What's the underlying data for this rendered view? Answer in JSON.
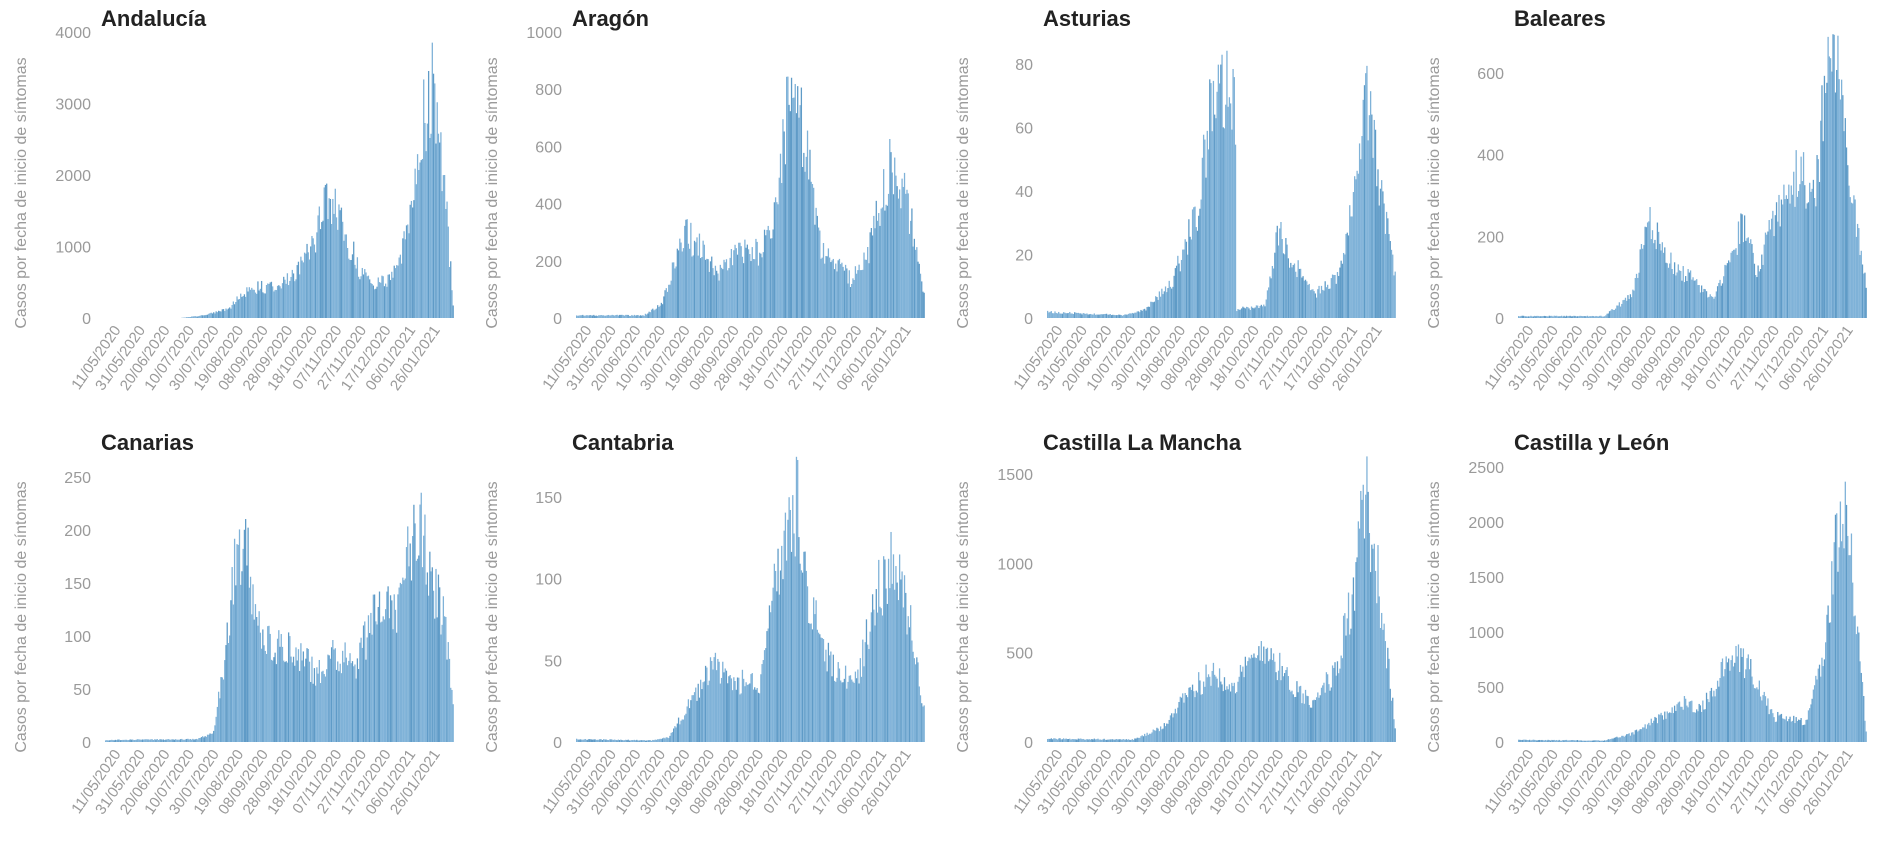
{
  "page": {
    "ylabel": "Casos por fecha de inicio de síntomas",
    "date_ticks": [
      "11/05/2020",
      "31/05/2020",
      "20/06/2020",
      "10/07/2020",
      "30/07/2020",
      "19/08/2020",
      "08/09/2020",
      "28/09/2020",
      "18/10/2020",
      "07/11/2020",
      "27/11/2020",
      "17/12/2020",
      "06/01/2021",
      "26/01/2021"
    ],
    "colors": {
      "bar": "#7fb2d8",
      "bar_dark": "#5f9bc7",
      "text": "#222222",
      "axis_text": "#9a9a9a"
    }
  },
  "chart_data": [
    {
      "type": "bar",
      "title": "Andalucía",
      "ylabel": "Casos por fecha de inicio de síntomas",
      "ylim": [
        0,
        4000
      ],
      "yticks": [
        0,
        1000,
        2000,
        3000,
        4000
      ],
      "x_range": [
        "2020-05-01",
        "2021-02-10"
      ],
      "peaks": [
        {
          "date": "2020-07-01",
          "value": 0
        },
        {
          "date": "2020-07-20",
          "value": 40
        },
        {
          "date": "2020-08-10",
          "value": 150
        },
        {
          "date": "2020-08-25",
          "value": 450
        },
        {
          "date": "2020-09-10",
          "value": 480
        },
        {
          "date": "2020-09-25",
          "value": 550
        },
        {
          "date": "2020-10-15",
          "value": 1000
        },
        {
          "date": "2020-10-28",
          "value": 1750
        },
        {
          "date": "2020-11-05",
          "value": 1600
        },
        {
          "date": "2020-11-25",
          "value": 700
        },
        {
          "date": "2020-12-05",
          "value": 500
        },
        {
          "date": "2020-12-20",
          "value": 600
        },
        {
          "date": "2021-01-05",
          "value": 1500
        },
        {
          "date": "2021-01-15",
          "value": 3000
        },
        {
          "date": "2021-01-22",
          "value": 3600
        },
        {
          "date": "2021-02-01",
          "value": 2000
        },
        {
          "date": "2021-02-08",
          "value": 200
        }
      ]
    },
    {
      "type": "bar",
      "title": "Aragón",
      "ylabel": "Casos por fecha de inicio de síntomas",
      "ylim": [
        0,
        1000
      ],
      "yticks": [
        0,
        200,
        400,
        600,
        800,
        1000
      ],
      "x_range": [
        "2020-05-01",
        "2021-02-10"
      ],
      "peaks": [
        {
          "date": "2020-05-01",
          "value": 10
        },
        {
          "date": "2020-06-25",
          "value": 10
        },
        {
          "date": "2020-07-10",
          "value": 60
        },
        {
          "date": "2020-07-28",
          "value": 330
        },
        {
          "date": "2020-08-10",
          "value": 260
        },
        {
          "date": "2020-08-25",
          "value": 170
        },
        {
          "date": "2020-09-10",
          "value": 250
        },
        {
          "date": "2020-09-28",
          "value": 250
        },
        {
          "date": "2020-10-10",
          "value": 400
        },
        {
          "date": "2020-10-22",
          "value": 880
        },
        {
          "date": "2020-11-02",
          "value": 700
        },
        {
          "date": "2020-11-15",
          "value": 280
        },
        {
          "date": "2020-12-10",
          "value": 150
        },
        {
          "date": "2020-12-25",
          "value": 250
        },
        {
          "date": "2021-01-12",
          "value": 600
        },
        {
          "date": "2021-01-25",
          "value": 450
        },
        {
          "date": "2021-02-08",
          "value": 100
        }
      ]
    },
    {
      "type": "bar",
      "title": "Asturias",
      "ylabel": "Casos por fecha de inicio de síntomas",
      "ylim": [
        0,
        90
      ],
      "yticks": [
        0,
        20,
        40,
        60,
        80
      ],
      "x_range": [
        "2020-05-01",
        "2021-02-10"
      ],
      "peaks": [
        {
          "date": "2020-05-01",
          "value": 2
        },
        {
          "date": "2020-07-01",
          "value": 1
        },
        {
          "date": "2020-07-20",
          "value": 3
        },
        {
          "date": "2020-08-10",
          "value": 12
        },
        {
          "date": "2020-08-30",
          "value": 35
        },
        {
          "date": "2020-09-12",
          "value": 75
        },
        {
          "date": "2020-09-25",
          "value": 78
        },
        {
          "date": "2020-10-01",
          "value": 70
        },
        {
          "date": "2020-10-02",
          "value": 3
        },
        {
          "date": "2020-10-25",
          "value": 4
        },
        {
          "date": "2020-11-05",
          "value": 30
        },
        {
          "date": "2020-11-15",
          "value": 20
        },
        {
          "date": "2020-12-05",
          "value": 8
        },
        {
          "date": "2020-12-25",
          "value": 15
        },
        {
          "date": "2021-01-10",
          "value": 50
        },
        {
          "date": "2021-01-15",
          "value": 80
        },
        {
          "date": "2021-01-25",
          "value": 50
        },
        {
          "date": "2021-02-08",
          "value": 15
        }
      ]
    },
    {
      "type": "bar",
      "title": "Baleares",
      "ylabel": "Casos por fecha de inicio de síntomas",
      "ylim": [
        0,
        700
      ],
      "yticks": [
        0,
        200,
        400,
        600
      ],
      "x_range": [
        "2020-05-01",
        "2021-02-10"
      ],
      "peaks": [
        {
          "date": "2020-05-01",
          "value": 5
        },
        {
          "date": "2020-07-10",
          "value": 5
        },
        {
          "date": "2020-08-01",
          "value": 60
        },
        {
          "date": "2020-08-15",
          "value": 260
        },
        {
          "date": "2020-09-01",
          "value": 150
        },
        {
          "date": "2020-09-20",
          "value": 100
        },
        {
          "date": "2020-10-05",
          "value": 50
        },
        {
          "date": "2020-10-20",
          "value": 150
        },
        {
          "date": "2020-11-01",
          "value": 260
        },
        {
          "date": "2020-11-10",
          "value": 120
        },
        {
          "date": "2020-11-25",
          "value": 250
        },
        {
          "date": "2020-12-15",
          "value": 400
        },
        {
          "date": "2020-12-28",
          "value": 300
        },
        {
          "date": "2021-01-05",
          "value": 620
        },
        {
          "date": "2021-01-15",
          "value": 650
        },
        {
          "date": "2021-01-28",
          "value": 300
        },
        {
          "date": "2021-02-08",
          "value": 80
        }
      ]
    },
    {
      "type": "bar",
      "title": "Canarias",
      "ylabel": "Casos por fecha de inicio de síntomas",
      "ylim": [
        0,
        270
      ],
      "yticks": [
        0,
        50,
        100,
        150,
        200,
        250
      ],
      "x_range": [
        "2020-05-01",
        "2021-02-10"
      ],
      "peaks": [
        {
          "date": "2020-05-01",
          "value": 2
        },
        {
          "date": "2020-07-15",
          "value": 3
        },
        {
          "date": "2020-07-28",
          "value": 10
        },
        {
          "date": "2020-08-05",
          "value": 80
        },
        {
          "date": "2020-08-15",
          "value": 190
        },
        {
          "date": "2020-08-25",
          "value": 190
        },
        {
          "date": "2020-09-05",
          "value": 100
        },
        {
          "date": "2020-10-01",
          "value": 95
        },
        {
          "date": "2020-10-20",
          "value": 70
        },
        {
          "date": "2020-11-01",
          "value": 90
        },
        {
          "date": "2020-11-20",
          "value": 80
        },
        {
          "date": "2020-12-10",
          "value": 140
        },
        {
          "date": "2020-12-25",
          "value": 140
        },
        {
          "date": "2021-01-10",
          "value": 240
        },
        {
          "date": "2021-01-20",
          "value": 180
        },
        {
          "date": "2021-02-01",
          "value": 120
        },
        {
          "date": "2021-02-08",
          "value": 40
        }
      ]
    },
    {
      "type": "bar",
      "title": "Cantabria",
      "ylabel": "Casos por fecha de inicio de síntomas",
      "ylim": [
        0,
        175
      ],
      "yticks": [
        0,
        50,
        100,
        150
      ],
      "x_range": [
        "2020-05-01",
        "2021-02-10"
      ],
      "peaks": [
        {
          "date": "2020-05-01",
          "value": 2
        },
        {
          "date": "2020-07-01",
          "value": 1
        },
        {
          "date": "2020-07-15",
          "value": 3
        },
        {
          "date": "2020-08-01",
          "value": 25
        },
        {
          "date": "2020-08-20",
          "value": 50
        },
        {
          "date": "2020-09-05",
          "value": 40
        },
        {
          "date": "2020-09-28",
          "value": 40
        },
        {
          "date": "2020-10-15",
          "value": 130
        },
        {
          "date": "2020-10-28",
          "value": 160
        },
        {
          "date": "2020-11-05",
          "value": 100
        },
        {
          "date": "2020-11-25",
          "value": 50
        },
        {
          "date": "2020-12-15",
          "value": 40
        },
        {
          "date": "2021-01-01",
          "value": 100
        },
        {
          "date": "2021-01-12",
          "value": 120
        },
        {
          "date": "2021-01-25",
          "value": 90
        },
        {
          "date": "2021-02-08",
          "value": 20
        }
      ]
    },
    {
      "type": "bar",
      "title": "Castilla La Mancha",
      "ylabel": "Casos por fecha de inicio de síntomas",
      "ylim": [
        0,
        1600
      ],
      "yticks": [
        0,
        500,
        1000,
        1500
      ],
      "x_range": [
        "2020-05-01",
        "2021-02-10"
      ],
      "peaks": [
        {
          "date": "2020-05-01",
          "value": 20
        },
        {
          "date": "2020-07-10",
          "value": 15
        },
        {
          "date": "2020-08-01",
          "value": 80
        },
        {
          "date": "2020-08-25",
          "value": 300
        },
        {
          "date": "2020-09-12",
          "value": 430
        },
        {
          "date": "2020-10-01",
          "value": 350
        },
        {
          "date": "2020-10-25",
          "value": 600
        },
        {
          "date": "2020-11-10",
          "value": 400
        },
        {
          "date": "2020-11-30",
          "value": 250
        },
        {
          "date": "2020-12-20",
          "value": 400
        },
        {
          "date": "2021-01-05",
          "value": 900
        },
        {
          "date": "2021-01-15",
          "value": 1500
        },
        {
          "date": "2021-01-25",
          "value": 1000
        },
        {
          "date": "2021-02-08",
          "value": 100
        }
      ]
    },
    {
      "type": "bar",
      "title": "Castilla y León",
      "ylabel": "Casos por fecha de inicio de síntomas",
      "ylim": [
        0,
        2600
      ],
      "yticks": [
        0,
        500,
        1000,
        1500,
        2000,
        2500
      ],
      "x_range": [
        "2020-05-01",
        "2021-02-10"
      ],
      "peaks": [
        {
          "date": "2020-05-01",
          "value": 20
        },
        {
          "date": "2020-07-10",
          "value": 15
        },
        {
          "date": "2020-08-01",
          "value": 80
        },
        {
          "date": "2020-08-25",
          "value": 250
        },
        {
          "date": "2020-09-12",
          "value": 380
        },
        {
          "date": "2020-09-28",
          "value": 350
        },
        {
          "date": "2020-10-15",
          "value": 700
        },
        {
          "date": "2020-10-25",
          "value": 850
        },
        {
          "date": "2020-11-05",
          "value": 700
        },
        {
          "date": "2020-11-25",
          "value": 250
        },
        {
          "date": "2020-12-20",
          "value": 200
        },
        {
          "date": "2021-01-05",
          "value": 800
        },
        {
          "date": "2021-01-15",
          "value": 2000
        },
        {
          "date": "2021-01-22",
          "value": 2300
        },
        {
          "date": "2021-02-01",
          "value": 1200
        },
        {
          "date": "2021-02-08",
          "value": 100
        }
      ]
    }
  ]
}
